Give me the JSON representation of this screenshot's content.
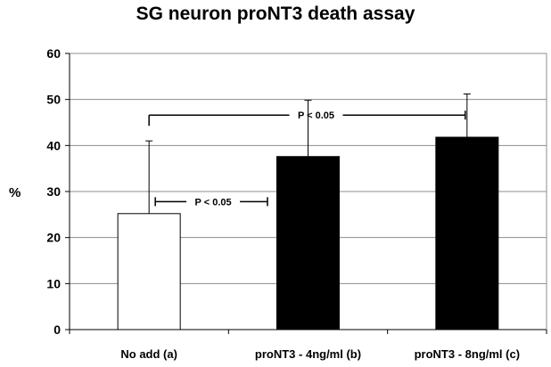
{
  "chart_data": {
    "type": "bar",
    "title": "SG neuron proNT3 death assay",
    "ylabel": "%",
    "xlabel": "",
    "ylim": [
      0,
      60
    ],
    "yticks": [
      0,
      10,
      20,
      30,
      40,
      50,
      60
    ],
    "grid": true,
    "categories": [
      "No add (a)",
      "proNT3 - 4ng/ml (b)",
      "proNT3 - 8ng/ml (c)"
    ],
    "values": [
      25.2,
      37.6,
      41.8
    ],
    "error_upper": [
      15.8,
      12.2,
      9.4
    ],
    "bar_colors": [
      "#ffffff",
      "#000000",
      "#000000"
    ],
    "annotations": [
      {
        "text": "P < 0.05",
        "from": 0,
        "to": 1
      },
      {
        "text": "P < 0.05",
        "from": 0,
        "to": 2
      }
    ]
  }
}
